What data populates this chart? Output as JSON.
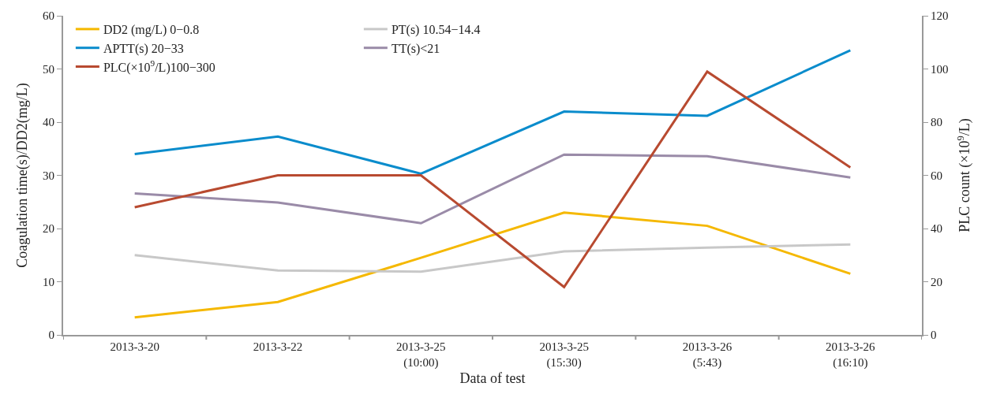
{
  "chart_data": {
    "type": "line",
    "xlabel": "Data of test",
    "ylabel": "Coagulation time(s)/DD2(mg/L)",
    "y2label": "PLC count (×10$^{9}$/L)",
    "categories": [
      "2013-3-20",
      "2013-3-22",
      "2013-3-25\n(10:00)",
      "2013-3-25\n(15:30)",
      "2013-3-26\n(5:43)",
      "2013-3-26\n(16:10)"
    ],
    "series": [
      {
        "name": "DD2 (mg/L) 0−0.8",
        "color": "#f5b800",
        "values": [
          3.3,
          6.2,
          14.5,
          23,
          20.5,
          11.5
        ]
      },
      {
        "name": "PT(s) 10.54−14.4",
        "color": "#c8c8c8",
        "values": [
          15,
          12.1,
          11.9,
          15.7,
          16.4,
          17
        ]
      },
      {
        "name": "APTT(s) 20−33",
        "color": "#0a8ccc",
        "values": [
          34,
          37.3,
          30.3,
          42,
          41.2,
          53.5
        ]
      },
      {
        "name": "TT(s)<21",
        "color": "#9a8ba8",
        "values": [
          26.6,
          24.9,
          21,
          33.9,
          33.6,
          29.6
        ]
      },
      {
        "name": "PLC(×10$^{9}$/L)100−300",
        "color": "#b84a30",
        "values": [
          48,
          60,
          60,
          18,
          99,
          63
        ],
        "axis": "y2"
      }
    ],
    "ylim": [
      0,
      60
    ],
    "yticks": [
      0,
      10,
      20,
      30,
      40,
      50,
      60
    ],
    "y2lim": [
      0,
      120
    ],
    "y2ticks": [
      0,
      20,
      40,
      60,
      80,
      100,
      120
    ],
    "legend": "top left",
    "marker": "none",
    "line_style": "solid"
  }
}
